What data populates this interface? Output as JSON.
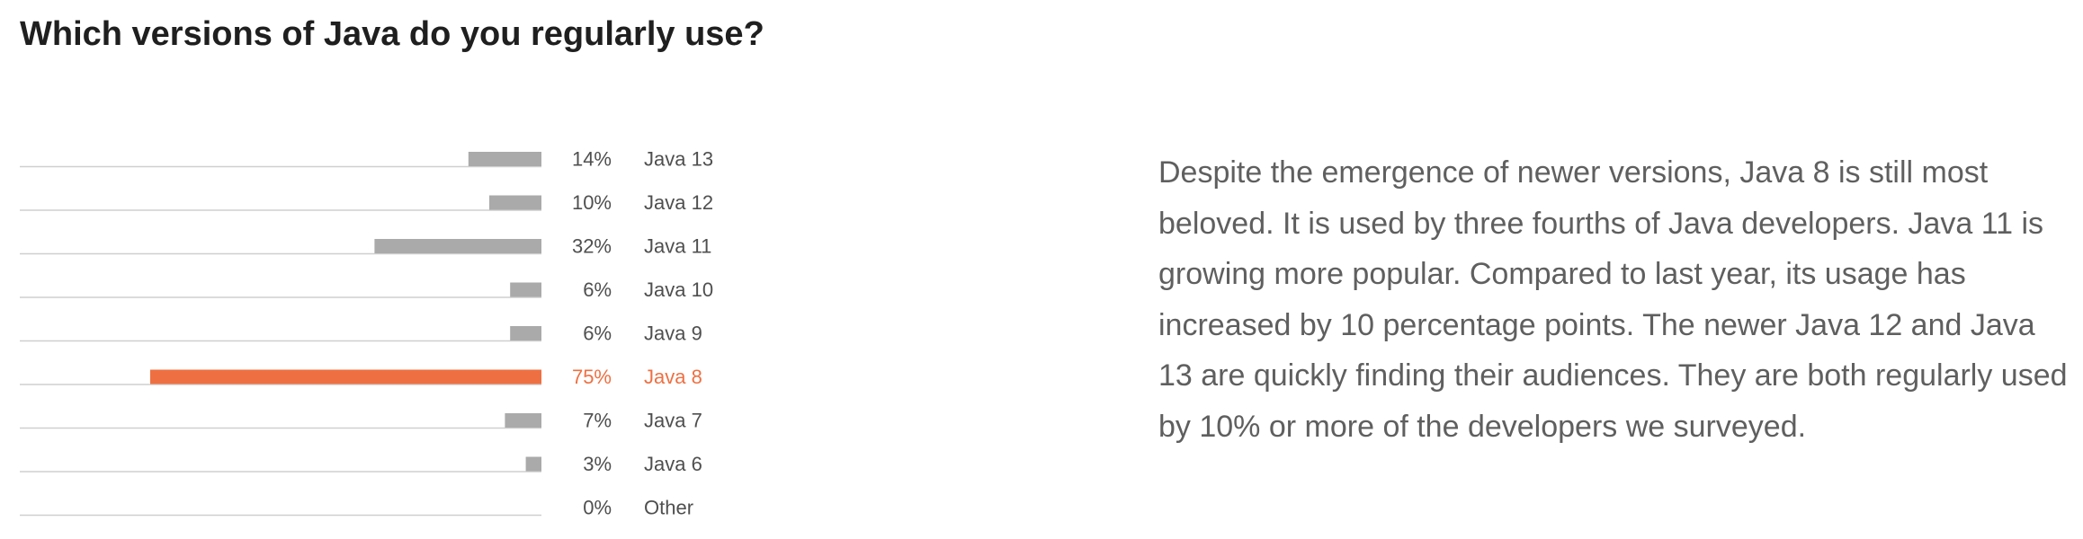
{
  "title": "Which versions of Java do you regularly use?",
  "description": "Despite the emergence of newer versions, Java 8 is still most beloved. It is used by three fourths of Java developers. Java 11 is growing more popular. Compared to last year, its usage has increased by 10 percentage points. The newer Java 12 and Java 13 are quickly finding their audiences. They are both regularly used by 10% or more of the developers we surveyed.",
  "colors": {
    "bar": "#aaaaaa",
    "highlight": "#ee7042",
    "label": "#4f4f4f",
    "track": "#cfcfcf"
  },
  "chart_data": {
    "type": "bar",
    "orientation": "horizontal",
    "title": "Which versions of Java do you regularly use?",
    "xlim": [
      0,
      100
    ],
    "grid": false,
    "categories": [
      "Java 13",
      "Java 12",
      "Java 11",
      "Java 10",
      "Java 9",
      "Java 8",
      "Java 7",
      "Java 6",
      "Other"
    ],
    "values": [
      14,
      10,
      32,
      6,
      6,
      75,
      7,
      3,
      0
    ],
    "value_labels": [
      "14%",
      "10%",
      "32%",
      "6%",
      "6%",
      "75%",
      "7%",
      "3%",
      "0%"
    ],
    "highlighted": "Java 8"
  }
}
